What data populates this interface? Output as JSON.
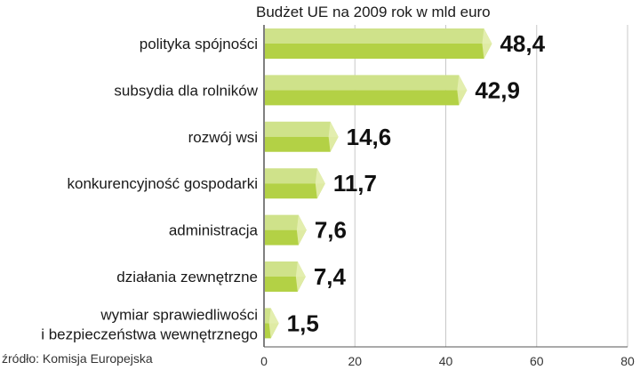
{
  "chart_data": {
    "type": "bar",
    "orientation": "horizontal",
    "title": "Budżet UE na 2009 rok w mld euro",
    "categories": [
      "polityka spójności",
      "subsydia dla rolników",
      "rozwój wsi",
      "konkurencyjność gospodarki",
      "administracja",
      "działania zewnętrzne",
      [
        "wymiar sprawiedliwości",
        "i bezpieczeństwa wewnętrznego"
      ]
    ],
    "values": [
      48.4,
      42.9,
      14.6,
      11.7,
      7.6,
      7.4,
      1.5
    ],
    "value_labels": [
      "48,4",
      "42,9",
      "14,6",
      "11,7",
      "7,6",
      "7,4",
      "1,5"
    ],
    "xlim": [
      0,
      80
    ],
    "xticks": [
      0,
      20,
      40,
      60,
      80
    ],
    "xtick_labels": [
      "0",
      "20",
      "40",
      "60",
      "80"
    ],
    "grid": true,
    "source": "źródło: Komisja Europejska",
    "colors": {
      "bar_top": "#cfe28a",
      "bar_front": "#b3d145",
      "bar_end": "#e6f0b5",
      "grid": "#c8c8c8",
      "axis": "#555555"
    }
  }
}
